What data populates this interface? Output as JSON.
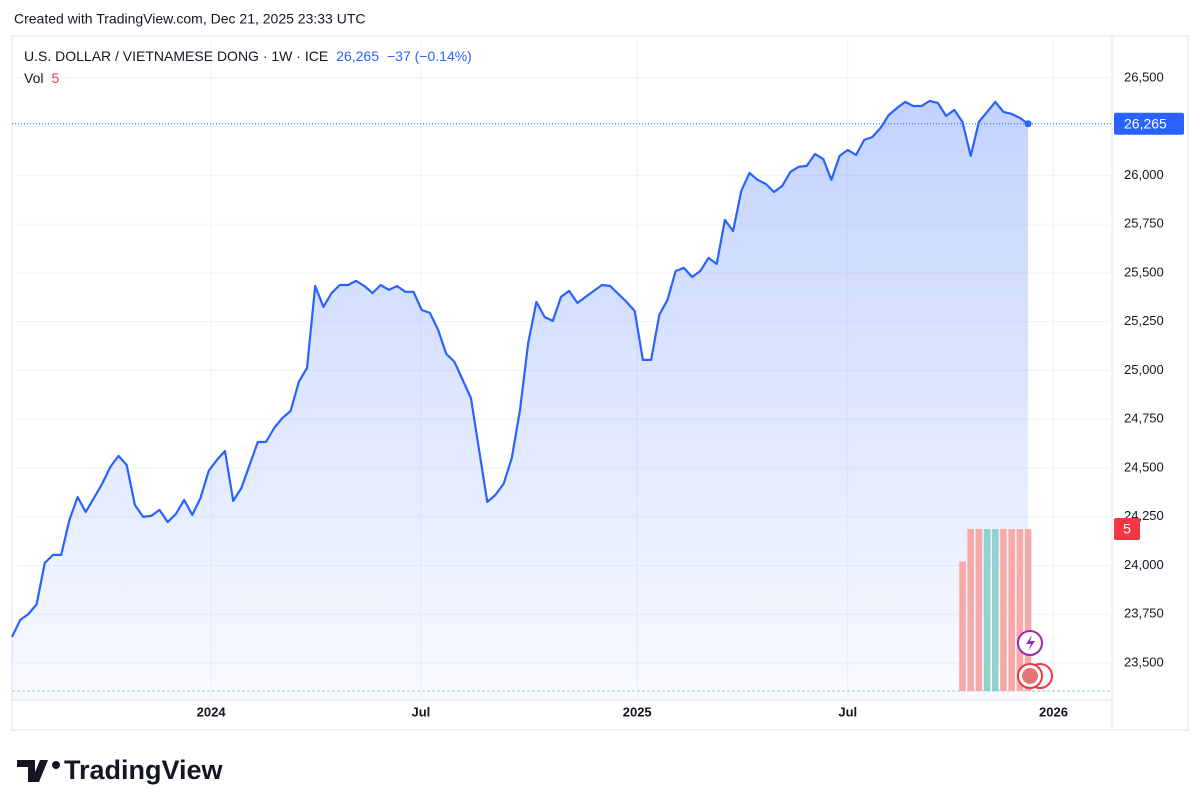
{
  "header": {
    "credit": "Created with TradingView.com, Dec 21, 2025 23:33 UTC"
  },
  "chart_data": {
    "type": "area",
    "title": "U.S. DOLLAR / VIETNAMESE DONG · 1W · ICE",
    "last_value": {
      "value": 26265,
      "label": "26,265"
    },
    "change": "−37 (−0.14%)",
    "color": "#2962ff",
    "x": [
      0,
      1,
      2,
      3,
      4,
      5,
      6,
      7,
      8,
      9,
      10,
      11,
      12,
      13,
      14,
      15,
      16,
      17,
      18,
      19,
      20,
      21,
      22,
      23,
      24,
      25,
      26,
      27,
      28,
      29,
      30,
      31,
      32,
      33,
      34,
      35,
      36,
      37,
      38,
      39,
      40,
      41,
      42,
      43,
      44,
      45,
      46,
      47,
      48,
      49,
      50,
      51,
      52,
      53,
      54,
      55,
      56,
      57,
      58,
      59,
      60,
      61,
      62,
      63,
      64,
      65,
      66,
      67,
      68,
      69,
      70,
      71,
      72,
      73,
      74,
      75,
      76,
      77,
      78,
      79,
      80,
      81,
      82,
      83,
      84,
      85,
      86,
      87,
      88,
      89,
      90,
      91,
      92,
      93,
      94,
      95,
      96,
      97,
      98,
      99,
      100,
      101,
      102,
      103,
      104,
      105,
      106,
      107,
      108,
      109,
      110,
      111,
      112,
      113,
      114,
      115,
      116,
      117,
      118,
      119,
      120,
      121,
      122,
      123,
      124
    ],
    "values": [
      23633,
      23720,
      23751,
      23800,
      24013,
      24054,
      24054,
      24233,
      24351,
      24274,
      24346,
      24418,
      24505,
      24562,
      24515,
      24310,
      24249,
      24254,
      24285,
      24223,
      24264,
      24336,
      24259,
      24346,
      24485,
      24541,
      24587,
      24331,
      24397,
      24515,
      24633,
      24633,
      24705,
      24756,
      24792,
      24941,
      25013,
      25433,
      25326,
      25397,
      25438,
      25438,
      25459,
      25433,
      25397,
      25438,
      25413,
      25433,
      25403,
      25403,
      25310,
      25295,
      25208,
      25085,
      25044,
      24951,
      24859,
      24592,
      24326,
      24362,
      24418,
      24551,
      24797,
      25141,
      25351,
      25274,
      25254,
      25377,
      25408,
      25346,
      25377,
      25408,
      25438,
      25433,
      25392,
      25351,
      25305,
      25054,
      25054,
      25285,
      25362,
      25510,
      25526,
      25479,
      25510,
      25577,
      25546,
      25772,
      25715,
      25921,
      26013,
      25977,
      25956,
      25915,
      25946,
      26018,
      26044,
      26049,
      26110,
      26085,
      25977,
      26100,
      26131,
      26105,
      26182,
      26197,
      26244,
      26310,
      26346,
      26377,
      26356,
      26356,
      26382,
      26372,
      26305,
      26336,
      26274,
      26100,
      26274,
      26326,
      26377,
      26326,
      26315,
      26295,
      26265
    ],
    "xlim": [
      0,
      134
    ],
    "xticks": [
      {
        "value": 24.3,
        "label": "2024"
      },
      {
        "value": 49.9,
        "label": "Jul"
      },
      {
        "value": 76.3,
        "label": "2025"
      },
      {
        "value": 102,
        "label": "Jul"
      },
      {
        "value": 127.1,
        "label": "2026"
      }
    ],
    "ylim": [
      23310,
      26715
    ],
    "yticks": [
      {
        "value": 23500,
        "label": "23,500"
      },
      {
        "value": 23750,
        "label": "23,750"
      },
      {
        "value": 24000,
        "label": "24,000"
      },
      {
        "value": 24250,
        "label": "24,250"
      },
      {
        "value": 24500,
        "label": "24,500"
      },
      {
        "value": 24750,
        "label": "24,750"
      },
      {
        "value": 25000,
        "label": "25,000"
      },
      {
        "value": 25250,
        "label": "25,250"
      },
      {
        "value": 25500,
        "label": "25,500"
      },
      {
        "value": 25750,
        "label": "25,750"
      },
      {
        "value": 26000,
        "label": "26,000"
      },
      {
        "value": 26250,
        "label": "26,250"
      },
      {
        "value": 26500,
        "label": "26,500"
      }
    ],
    "grid": true,
    "volume": {
      "name": "Vol",
      "last": 5,
      "x": [
        116,
        117,
        118,
        119,
        120,
        121,
        122,
        123,
        124
      ],
      "values": [
        4,
        5,
        5,
        5,
        5,
        5,
        5,
        5,
        5
      ],
      "colors": [
        "#f7a9a7",
        "#f7a9a7",
        "#f7a9a7",
        "#92d2cc",
        "#92d2cc",
        "#f7a9a7",
        "#f7a9a7",
        "#f7a9a7",
        "#f7a9a7"
      ]
    }
  },
  "footer": {
    "brand": "TradingView"
  }
}
